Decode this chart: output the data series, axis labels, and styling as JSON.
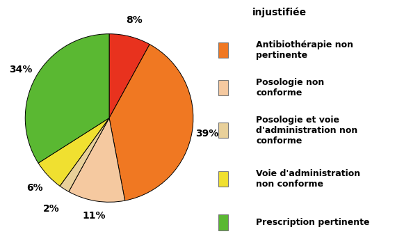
{
  "slices": [
    {
      "label": "8%",
      "pct": 8,
      "color": "#e8321e"
    },
    {
      "label": "39%",
      "pct": 39,
      "color": "#f07822"
    },
    {
      "label": "11%",
      "pct": 11,
      "color": "#f5c9a0"
    },
    {
      "label": "2%",
      "pct": 2,
      "color": "#e8d09a"
    },
    {
      "label": "6%",
      "pct": 6,
      "color": "#f0e030"
    },
    {
      "label": "34%",
      "pct": 34,
      "color": "#5ab832"
    }
  ],
  "legend_entries": [
    {
      "label": "Antibiothérapie non\npertinente",
      "color": "#f07822"
    },
    {
      "label": "Posologie non\nconforme",
      "color": "#f5c9a0"
    },
    {
      "label": "Posologie et voie\nd'administration non\nconforme",
      "color": "#e8d09a"
    },
    {
      "label": "Voie d'administration\nnon conforme",
      "color": "#f0e030"
    },
    {
      "label": "Prescription pertinente",
      "color": "#5ab832"
    }
  ],
  "top_legend_text": "injustifiée",
  "pie_bg": "#c8c8c8",
  "fig_bg": "#ffffff",
  "label_fontsize": 10,
  "legend_fontsize": 9
}
